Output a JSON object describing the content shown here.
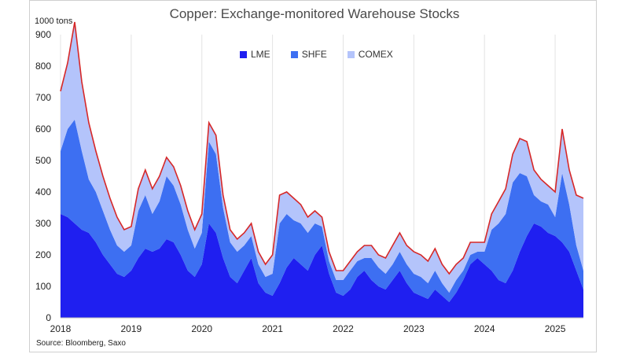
{
  "chart_data": {
    "type": "area",
    "stacked": true,
    "title": "Copper: Exchange-monitored Warehouse Stocks",
    "ylabel": "1000 tons",
    "source": "Source: Bloomberg, Saxo",
    "ylim": [
      0,
      900
    ],
    "yticks": [
      "0",
      "100",
      "200",
      "300",
      "400",
      "500",
      "600",
      "700",
      "800",
      "900"
    ],
    "xlim": [
      2018.0,
      2025.4
    ],
    "xticks": [
      "2018",
      "2019",
      "2020",
      "2021",
      "2022",
      "2023",
      "2024",
      "2025"
    ],
    "grid": "vertical",
    "legend_position": "top-center",
    "x": [
      2018.0,
      2018.1,
      2018.2,
      2018.3,
      2018.4,
      2018.5,
      2018.6,
      2018.7,
      2018.8,
      2018.9,
      2019.0,
      2019.1,
      2019.2,
      2019.3,
      2019.4,
      2019.5,
      2019.6,
      2019.7,
      2019.8,
      2019.9,
      2020.0,
      2020.1,
      2020.2,
      2020.3,
      2020.4,
      2020.5,
      2020.6,
      2020.7,
      2020.8,
      2020.9,
      2021.0,
      2021.1,
      2021.2,
      2021.3,
      2021.4,
      2021.5,
      2021.6,
      2021.7,
      2021.8,
      2021.9,
      2022.0,
      2022.1,
      2022.2,
      2022.3,
      2022.4,
      2022.5,
      2022.6,
      2022.7,
      2022.8,
      2022.9,
      2023.0,
      2023.1,
      2023.2,
      2023.3,
      2023.4,
      2023.5,
      2023.6,
      2023.7,
      2023.8,
      2023.9,
      2024.0,
      2024.1,
      2024.2,
      2024.3,
      2024.4,
      2024.5,
      2024.6,
      2024.7,
      2024.8,
      2024.9,
      2025.0,
      2025.1,
      2025.2,
      2025.3,
      2025.4
    ],
    "series": [
      {
        "name": "LME",
        "color": "#1f1ff0",
        "values": [
          330,
          320,
          300,
          280,
          270,
          240,
          200,
          170,
          140,
          130,
          150,
          190,
          220,
          210,
          220,
          250,
          240,
          200,
          150,
          130,
          170,
          300,
          270,
          190,
          130,
          110,
          150,
          190,
          110,
          80,
          70,
          110,
          160,
          190,
          170,
          150,
          200,
          230,
          140,
          80,
          70,
          90,
          130,
          150,
          120,
          100,
          90,
          120,
          150,
          110,
          80,
          70,
          60,
          90,
          70,
          50,
          80,
          120,
          170,
          190,
          170,
          150,
          120,
          110,
          150,
          210,
          260,
          300,
          290,
          270,
          260,
          240,
          210,
          150,
          90
        ]
      },
      {
        "name": "SHFE",
        "color": "#3d6ff2",
        "values": [
          200,
          280,
          330,
          250,
          170,
          160,
          140,
          110,
          90,
          80,
          80,
          150,
          170,
          120,
          150,
          200,
          180,
          160,
          130,
          90,
          100,
          260,
          250,
          160,
          110,
          100,
          80,
          70,
          60,
          50,
          70,
          190,
          170,
          120,
          130,
          120,
          100,
          60,
          40,
          40,
          50,
          60,
          50,
          40,
          70,
          60,
          50,
          50,
          60,
          60,
          60,
          60,
          50,
          60,
          40,
          30,
          40,
          30,
          30,
          20,
          40,
          130,
          180,
          220,
          280,
          250,
          190,
          90,
          80,
          90,
          60,
          220,
          150,
          80,
          60
        ]
      },
      {
        "name": "COMEX",
        "color": "#b4c4fb",
        "values": [
          190,
          210,
          310,
          220,
          180,
          130,
          110,
          100,
          90,
          70,
          60,
          70,
          80,
          80,
          80,
          60,
          60,
          60,
          60,
          60,
          60,
          60,
          60,
          40,
          40,
          40,
          40,
          40,
          40,
          40,
          60,
          90,
          70,
          70,
          60,
          50,
          40,
          30,
          30,
          30,
          30,
          30,
          30,
          40,
          40,
          40,
          50,
          60,
          60,
          60,
          70,
          70,
          70,
          70,
          60,
          60,
          50,
          40,
          40,
          30,
          30,
          50,
          70,
          80,
          90,
          110,
          110,
          80,
          70,
          60,
          80,
          140,
          110,
          160,
          230
        ]
      }
    ]
  }
}
